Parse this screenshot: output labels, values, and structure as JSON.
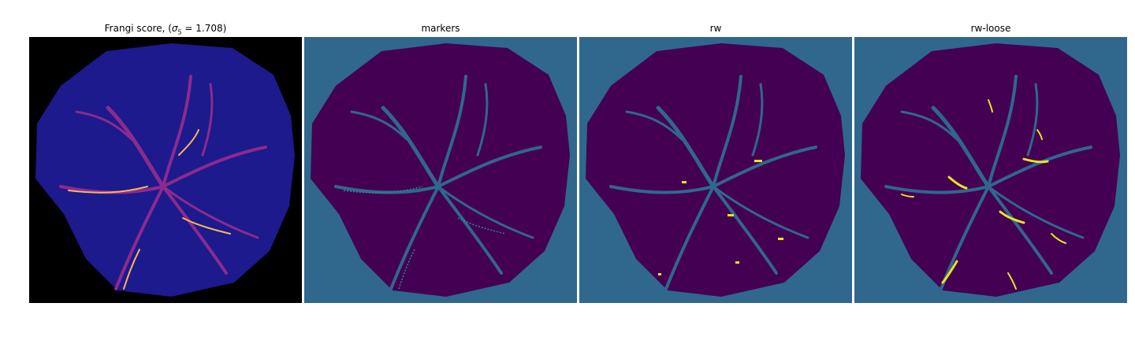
{
  "figure": {
    "panels": [
      {
        "id": "frangi",
        "title_prefix": "Frangi score, (",
        "title_sigma": "σ",
        "title_sub": "5",
        "title_value": " = 1.708)",
        "colormap": "magma"
      },
      {
        "id": "markers",
        "title": "markers",
        "colormap": "viridis"
      },
      {
        "id": "rw",
        "title": "rw",
        "colormap": "viridis"
      },
      {
        "id": "rw-loose",
        "title": "rw-loose",
        "colormap": "viridis"
      }
    ]
  },
  "colors": {
    "magma_background": "#000000",
    "magma_low": "#1c1a8c",
    "magma_mid": "#8c2a8f",
    "magma_high": "#f8b45e",
    "viridis_background": "#30678d",
    "viridis_dark": "#440154",
    "viridis_mid": "#2a8e8a",
    "viridis_bright": "#e8e520"
  }
}
